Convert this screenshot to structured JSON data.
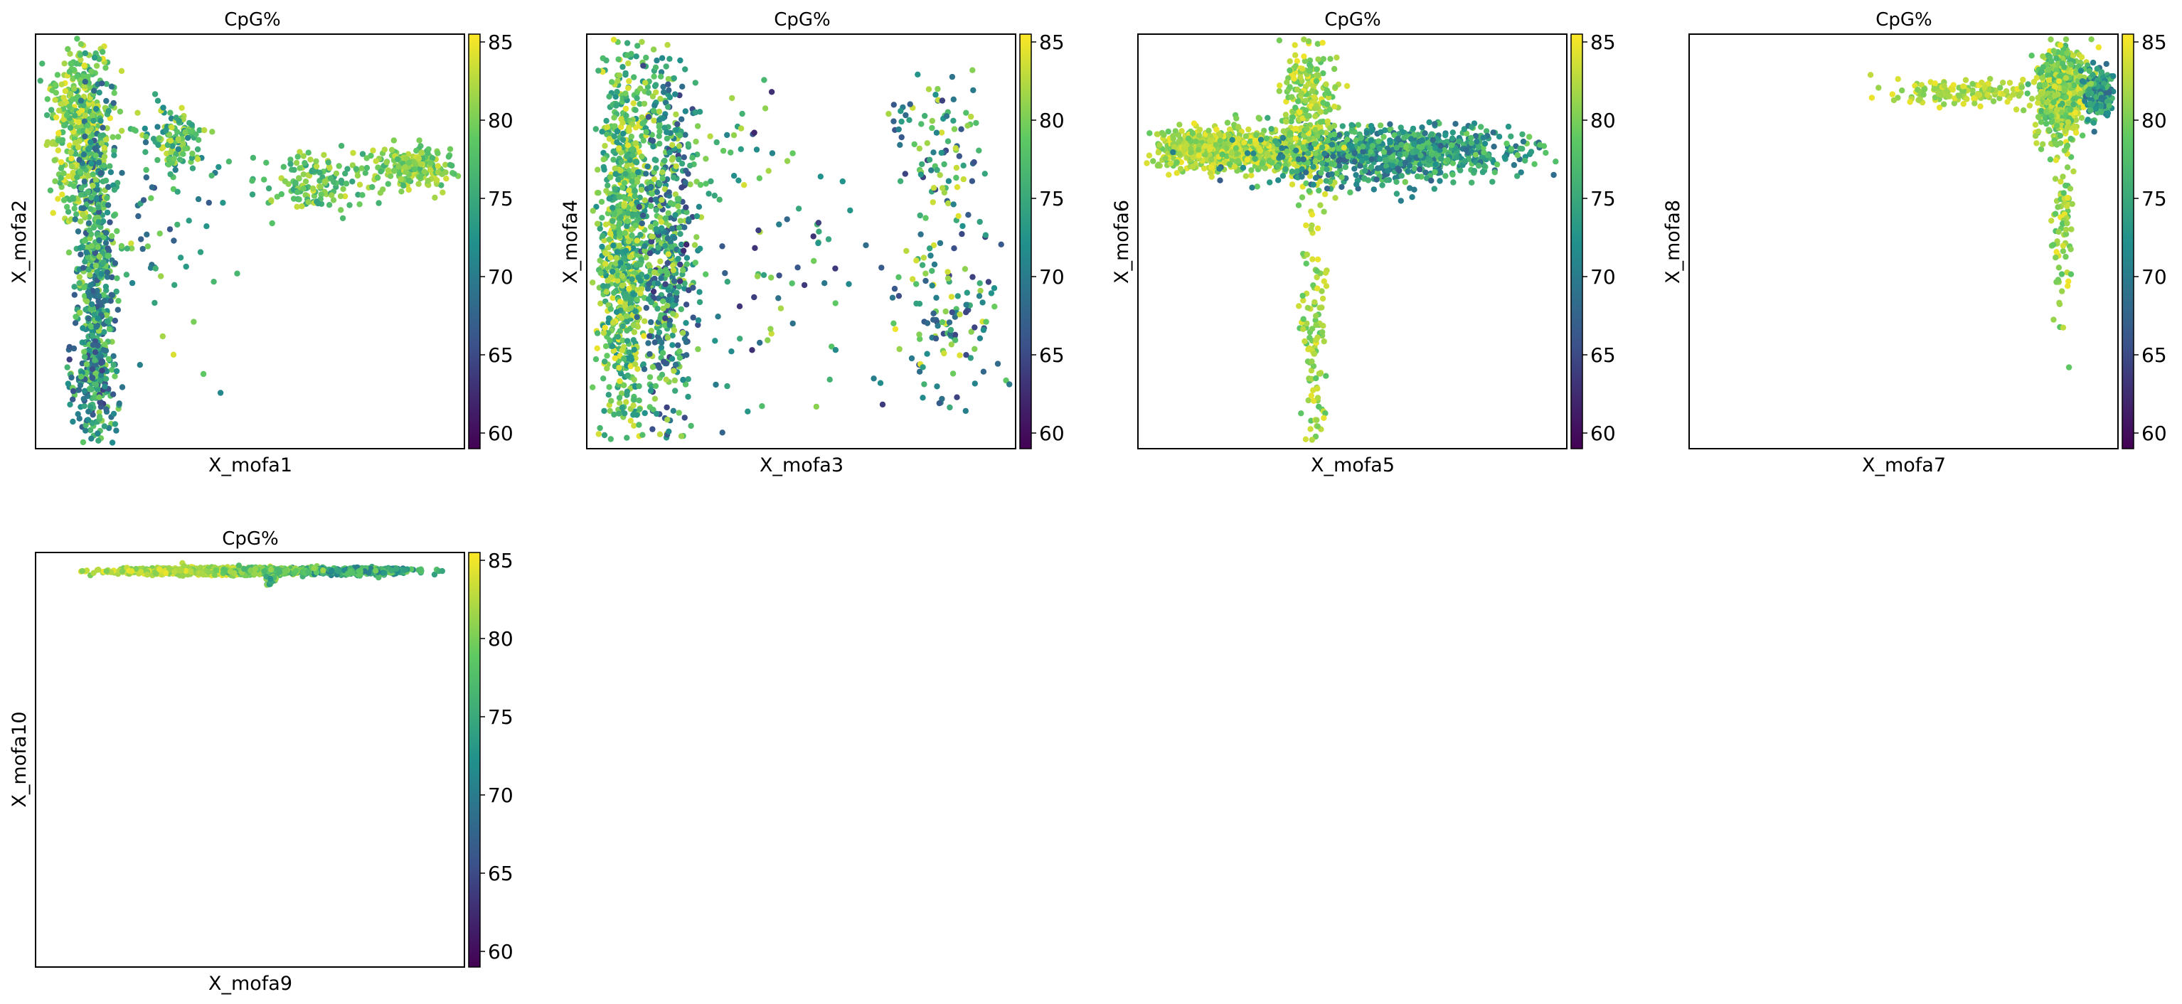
{
  "colors": {
    "colormap": "viridis",
    "viridis_stops": [
      "#440154",
      "#3b528b",
      "#21918c",
      "#5ec962",
      "#fde725"
    ],
    "frame": "#000000",
    "background": "#ffffff"
  },
  "colorbar": {
    "min": 59,
    "max": 85.5,
    "ticks": [
      60,
      65,
      70,
      75,
      80,
      85
    ]
  },
  "chart_data": [
    {
      "type": "scatter",
      "title": "CpG%",
      "xlabel": "X_mofa1",
      "ylabel": "X_mofa2",
      "color_variable": "CpG%",
      "clusters": [
        {
          "cx": 0.1,
          "cy": 0.22,
          "sx": 0.035,
          "sy": 0.12,
          "n": 420,
          "cmin": 76,
          "cmax": 85
        },
        {
          "cx": 0.14,
          "cy": 0.58,
          "sx": 0.022,
          "sy": 0.22,
          "n": 560,
          "cmin": 66,
          "cmax": 82
        },
        {
          "cx": 0.14,
          "cy": 0.84,
          "sx": 0.025,
          "sy": 0.06,
          "n": 160,
          "cmin": 64,
          "cmax": 80
        },
        {
          "cx": 0.32,
          "cy": 0.25,
          "sx": 0.035,
          "sy": 0.035,
          "n": 110,
          "cmin": 70,
          "cmax": 84
        },
        {
          "cx": 0.65,
          "cy": 0.36,
          "sx": 0.06,
          "sy": 0.035,
          "n": 140,
          "cmin": 74,
          "cmax": 84
        },
        {
          "cx": 0.88,
          "cy": 0.32,
          "sx": 0.05,
          "sy": 0.025,
          "n": 220,
          "cmin": 76,
          "cmax": 84
        },
        {
          "cx": 0.25,
          "cy": 0.4,
          "sx": 0.09,
          "sy": 0.16,
          "n": 90,
          "cmin": 66,
          "cmax": 84
        }
      ]
    },
    {
      "type": "scatter",
      "title": "CpG%",
      "xlabel": "X_mofa3",
      "ylabel": "X_mofa4",
      "color_variable": "CpG%",
      "clusters": [
        {
          "cx": 0.09,
          "cy": 0.5,
          "sx": 0.03,
          "sy": 0.24,
          "n": 950,
          "cmin": 72,
          "cmax": 85
        },
        {
          "cx": 0.19,
          "cy": 0.5,
          "sx": 0.03,
          "sy": 0.24,
          "n": 520,
          "cmin": 64,
          "cmax": 83
        },
        {
          "cx": 0.82,
          "cy": 0.26,
          "sx": 0.05,
          "sy": 0.08,
          "n": 90,
          "cmin": 64,
          "cmax": 84
        },
        {
          "cx": 0.84,
          "cy": 0.65,
          "sx": 0.06,
          "sy": 0.12,
          "n": 130,
          "cmin": 64,
          "cmax": 85
        },
        {
          "cx": 0.45,
          "cy": 0.58,
          "sx": 0.15,
          "sy": 0.18,
          "n": 90,
          "cmin": 62,
          "cmax": 84
        },
        {
          "cx": 0.3,
          "cy": 0.3,
          "sx": 0.1,
          "sy": 0.1,
          "n": 45,
          "cmin": 70,
          "cmax": 84
        }
      ]
    },
    {
      "type": "scatter",
      "title": "CpG%",
      "xlabel": "X_mofa5",
      "ylabel": "X_mofa6",
      "color_variable": "CpG%",
      "clusters": [
        {
          "cx": 0.22,
          "cy": 0.28,
          "sx": 0.1,
          "sy": 0.025,
          "n": 750,
          "cmin": 79,
          "cmax": 85
        },
        {
          "cx": 0.62,
          "cy": 0.28,
          "sx": 0.14,
          "sy": 0.028,
          "n": 750,
          "cmin": 68,
          "cmax": 80
        },
        {
          "cx": 0.4,
          "cy": 0.2,
          "sx": 0.03,
          "sy": 0.09,
          "n": 300,
          "cmin": 78,
          "cmax": 85
        },
        {
          "cx": 0.41,
          "cy": 0.72,
          "sx": 0.014,
          "sy": 0.14,
          "n": 110,
          "cmin": 78,
          "cmax": 85
        },
        {
          "cx": 0.48,
          "cy": 0.33,
          "sx": 0.12,
          "sy": 0.03,
          "n": 120,
          "cmin": 66,
          "cmax": 80
        }
      ]
    },
    {
      "type": "scatter",
      "title": "CpG%",
      "xlabel": "X_mofa7",
      "ylabel": "X_mofa8",
      "color_variable": "CpG%",
      "clusters": [
        {
          "cx": 0.87,
          "cy": 0.14,
          "sx": 0.03,
          "sy": 0.05,
          "n": 650,
          "cmin": 76,
          "cmax": 85
        },
        {
          "cx": 0.96,
          "cy": 0.14,
          "sx": 0.015,
          "sy": 0.03,
          "n": 200,
          "cmin": 68,
          "cmax": 78
        },
        {
          "cx": 0.65,
          "cy": 0.14,
          "sx": 0.1,
          "sy": 0.015,
          "n": 160,
          "cmin": 80,
          "cmax": 85
        },
        {
          "cx": 0.87,
          "cy": 0.45,
          "sx": 0.012,
          "sy": 0.13,
          "n": 90,
          "cmin": 78,
          "cmax": 85
        }
      ]
    },
    {
      "type": "scatter",
      "title": "CpG%",
      "xlabel": "X_mofa9",
      "ylabel": "X_mofa10",
      "color_variable": "CpG%",
      "clusters": [
        {
          "cx": 0.4,
          "cy": 0.045,
          "sx": 0.1,
          "sy": 0.004,
          "n": 900,
          "cmin": 80,
          "cmax": 85
        },
        {
          "cx": 0.73,
          "cy": 0.045,
          "sx": 0.08,
          "sy": 0.004,
          "n": 450,
          "cmin": 70,
          "cmax": 80
        },
        {
          "cx": 0.53,
          "cy": 0.045,
          "sx": 0.05,
          "sy": 0.004,
          "n": 200,
          "cmin": 76,
          "cmax": 82
        },
        {
          "cx": 0.55,
          "cy": 0.065,
          "sx": 0.008,
          "sy": 0.008,
          "n": 20,
          "cmin": 72,
          "cmax": 82
        }
      ]
    }
  ]
}
